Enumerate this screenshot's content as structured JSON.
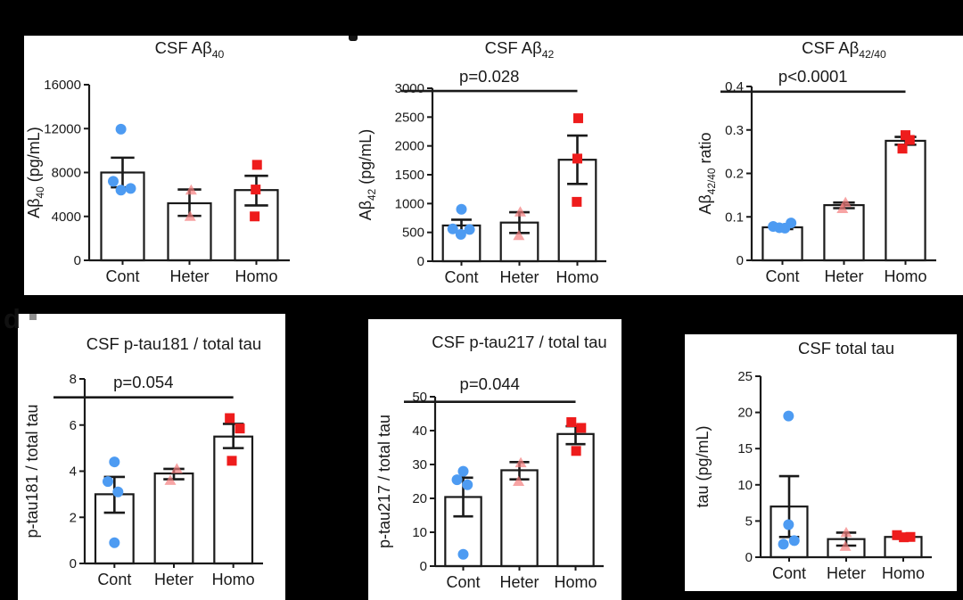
{
  "page": {
    "background": "#000000",
    "panel_labels": {
      "d": "d"
    }
  },
  "figure": {
    "categories": [
      "Cont",
      "Heter",
      "Homo"
    ],
    "group_styles": [
      {
        "name": "Cont",
        "marker": "circle",
        "color": "#4d9bf2",
        "opacity": 1
      },
      {
        "name": "Heter",
        "marker": "triangle",
        "color": "#f37d7d",
        "opacity": 0.7
      },
      {
        "name": "Homo",
        "marker": "square",
        "color": "#ee1c1c",
        "opacity": 1
      }
    ],
    "bar_fill": "#ffffff",
    "stroke_color": "#1a1a1a"
  },
  "chart_data": [
    {
      "id": "ab40",
      "type": "bar",
      "title_text": "CSF Ab40",
      "title_parts": [
        {
          "t": "CSF Aβ"
        },
        {
          "t": "40",
          "sub": true
        }
      ],
      "p_label": null,
      "sig_frac": null,
      "ylabel_parts": [
        {
          "t": "Aβ"
        },
        {
          "t": "40",
          "sub": true
        },
        {
          "t": " (pg/mL)"
        }
      ],
      "ylim": [
        0,
        16000
      ],
      "yticks": [
        0,
        4000,
        8000,
        12000,
        16000
      ],
      "ytick_labels": [
        "0",
        "4000",
        "8000",
        "12000",
        "16000"
      ],
      "categories": [
        "Cont",
        "Heter",
        "Homo"
      ],
      "bars": [
        8000,
        5200,
        6400
      ],
      "errors": [
        [
          6650,
          9350
        ],
        [
          4050,
          6450
        ],
        [
          5000,
          7700
        ]
      ],
      "points": [
        [
          [
            11950,
            -0.05
          ],
          [
            7200,
            -0.28
          ],
          [
            6400,
            -0.05
          ],
          [
            6550,
            0.24
          ]
        ],
        [
          [
            6400,
            0.05
          ],
          [
            4000,
            0.02
          ]
        ],
        [
          [
            8700,
            0.02
          ],
          [
            6450,
            -0.02
          ],
          [
            4000,
            -0.05
          ]
        ]
      ]
    },
    {
      "id": "ab42",
      "type": "bar",
      "title_text": "CSF Ab42",
      "title_parts": [
        {
          "t": "CSF Aβ"
        },
        {
          "t": "42",
          "sub": true
        }
      ],
      "p_label": "p=0.028",
      "sig_frac": 0.984,
      "ylabel_parts": [
        {
          "t": "Aβ"
        },
        {
          "t": "42",
          "sub": true
        },
        {
          "t": " (pg/mL)"
        }
      ],
      "ylim": [
        0,
        3000
      ],
      "yticks": [
        0,
        500,
        1000,
        1500,
        2000,
        2500,
        3000
      ],
      "ytick_labels": [
        "0",
        "500",
        "1000",
        "1500",
        "2000",
        "2500",
        "3000"
      ],
      "categories": [
        "Cont",
        "Heter",
        "Homo"
      ],
      "bars": [
        620,
        670,
        1760
      ],
      "errors": [
        [
          520,
          720
        ],
        [
          490,
          850
        ],
        [
          1340,
          2180
        ]
      ],
      "points": [
        [
          [
            900,
            0.0
          ],
          [
            560,
            -0.3
          ],
          [
            550,
            0.28
          ],
          [
            465,
            -0.02
          ]
        ],
        [
          [
            855,
            0.03
          ],
          [
            445,
            -0.02
          ]
        ],
        [
          [
            2480,
            0.03
          ],
          [
            1780,
            0.0
          ],
          [
            1030,
            -0.02
          ]
        ]
      ]
    },
    {
      "id": "ab4240",
      "type": "bar",
      "title_text": "CSF Ab42/40",
      "title_parts": [
        {
          "t": "CSF Aβ"
        },
        {
          "t": "42/40",
          "sub": true
        }
      ],
      "p_label": "p<0.0001",
      "sig_frac": 0.97,
      "ylabel_parts": [
        {
          "t": "Aβ"
        },
        {
          "t": "42/40",
          "sub": true
        },
        {
          "t": " ratio"
        }
      ],
      "ylim": [
        0,
        0.4
      ],
      "yticks": [
        0,
        0.1,
        0.2,
        0.3,
        0.4
      ],
      "ytick_labels": [
        "0",
        "0.1",
        "0.2",
        "0.3",
        "0.4"
      ],
      "categories": [
        "Cont",
        "Heter",
        "Homo"
      ],
      "bars": [
        0.076,
        0.127,
        0.275
      ],
      "errors": [
        [
          0.072,
          0.082
        ],
        [
          0.12,
          0.133
        ],
        [
          0.266,
          0.284
        ]
      ],
      "points": [
        [
          [
            0.078,
            -0.3
          ],
          [
            0.075,
            -0.1
          ],
          [
            0.074,
            0.08
          ],
          [
            0.086,
            0.28
          ]
        ],
        [
          [
            0.133,
            0.05
          ],
          [
            0.119,
            -0.05
          ]
        ],
        [
          [
            0.288,
            0.0
          ],
          [
            0.277,
            0.14
          ],
          [
            0.257,
            -0.1
          ]
        ]
      ]
    },
    {
      "id": "ptau181",
      "type": "bar",
      "title_text": "CSF p-tau181 / total tau",
      "title_parts": [
        {
          "t": "CSF p-tau181 / total tau"
        }
      ],
      "p_label": "p=0.054",
      "sig_frac": 0.9,
      "ylabel_parts": [
        {
          "t": "p-tau181 / total tau"
        }
      ],
      "ylim": [
        0,
        8
      ],
      "yticks": [
        0,
        2,
        4,
        6,
        8
      ],
      "ytick_labels": [
        "0",
        "2",
        "4",
        "6",
        "8"
      ],
      "categories": [
        "Cont",
        "Heter",
        "Homo"
      ],
      "bars": [
        3.0,
        3.9,
        5.5
      ],
      "errors": [
        [
          2.2,
          3.75
        ],
        [
          3.65,
          4.1
        ],
        [
          5.0,
          6.05
        ]
      ],
      "points": [
        [
          [
            4.4,
            0.0
          ],
          [
            3.55,
            -0.22
          ],
          [
            3.1,
            0.12
          ],
          [
            0.9,
            0.0
          ]
        ],
        [
          [
            4.1,
            0.1
          ],
          [
            3.6,
            -0.12
          ]
        ],
        [
          [
            6.3,
            -0.12
          ],
          [
            5.85,
            0.22
          ],
          [
            4.45,
            -0.05
          ]
        ]
      ]
    },
    {
      "id": "ptau217",
      "type": "bar",
      "title_text": "CSF p-tau217 / total tau",
      "title_parts": [
        {
          "t": "CSF p-tau217 / total tau"
        }
      ],
      "p_label": "p=0.044",
      "sig_frac": 0.97,
      "ylabel_parts": [
        {
          "t": "p-tau217 / total tau"
        }
      ],
      "ylim": [
        0,
        50
      ],
      "yticks": [
        0,
        10,
        20,
        30,
        40,
        50
      ],
      "ytick_labels": [
        "0",
        "10",
        "20",
        "30",
        "40",
        "50"
      ],
      "categories": [
        "Cont",
        "Heter",
        "Homo"
      ],
      "bars": [
        20.4,
        28.3,
        39
      ],
      "errors": [
        [
          14.7,
          26.1
        ],
        [
          25.6,
          30.7
        ],
        [
          36.0,
          41.3
        ]
      ],
      "points": [
        [
          [
            28,
            0.0
          ],
          [
            25.5,
            -0.22
          ],
          [
            24,
            0.15
          ],
          [
            3.5,
            0.0
          ]
        ],
        [
          [
            30.5,
            0.05
          ],
          [
            25,
            -0.03
          ]
        ],
        [
          [
            42.5,
            -0.15
          ],
          [
            40.8,
            0.2
          ],
          [
            34,
            0.02
          ]
        ]
      ]
    },
    {
      "id": "totaltau",
      "type": "bar",
      "title_text": "CSF total tau",
      "title_parts": [
        {
          "t": "CSF total tau"
        }
      ],
      "p_label": null,
      "sig_frac": null,
      "ylabel_parts": [
        {
          "t": "tau (pg/mL)"
        }
      ],
      "ylim": [
        0,
        25
      ],
      "yticks": [
        0,
        5,
        10,
        15,
        20,
        25
      ],
      "ytick_labels": [
        "0",
        "5",
        "10",
        "15",
        "20",
        "25"
      ],
      "categories": [
        "Cont",
        "Heter",
        "Homo"
      ],
      "bars": [
        7.0,
        2.5,
        2.8
      ],
      "errors": [
        [
          2.8,
          11.2
        ],
        [
          1.6,
          3.4
        ],
        [
          2.55,
          3.0
        ]
      ],
      "points": [
        [
          [
            19.5,
            -0.02
          ],
          [
            4.5,
            -0.02
          ],
          [
            1.8,
            -0.2
          ],
          [
            2.3,
            0.18
          ]
        ],
        [
          [
            3.4,
            0.0
          ],
          [
            1.5,
            -0.03
          ]
        ],
        [
          [
            3.05,
            -0.22
          ],
          [
            2.75,
            0.02
          ],
          [
            2.8,
            0.25
          ]
        ]
      ]
    }
  ]
}
